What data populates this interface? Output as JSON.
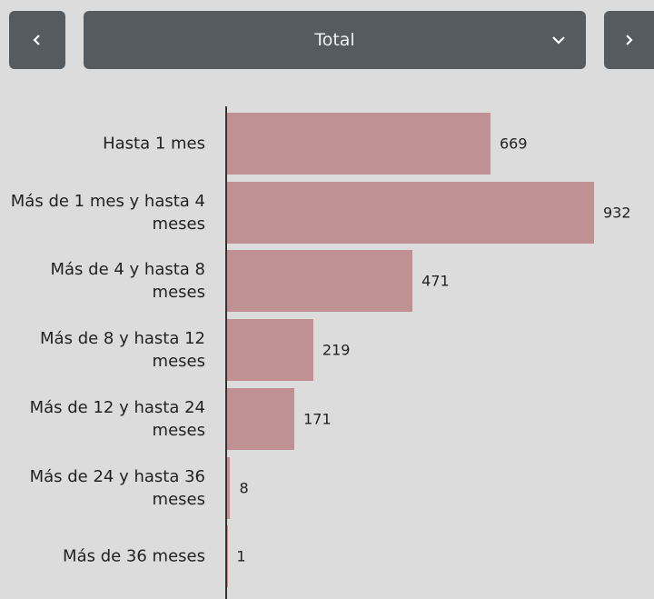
{
  "controls": {
    "selected": "Total"
  },
  "chart_data": {
    "type": "bar",
    "orientation": "horizontal",
    "categories": [
      "Hasta 1 mes",
      "Más de 1 mes y hasta 4 meses",
      "Más de 4 y hasta 8 meses",
      "Más de 8 y hasta 12 meses",
      "Más de 12 y hasta 24 meses",
      "Más de 24 y hasta 36 meses",
      "Más de 36 meses"
    ],
    "values": [
      669,
      932,
      471,
      219,
      171,
      8,
      1
    ],
    "color": "#bf9192"
  }
}
